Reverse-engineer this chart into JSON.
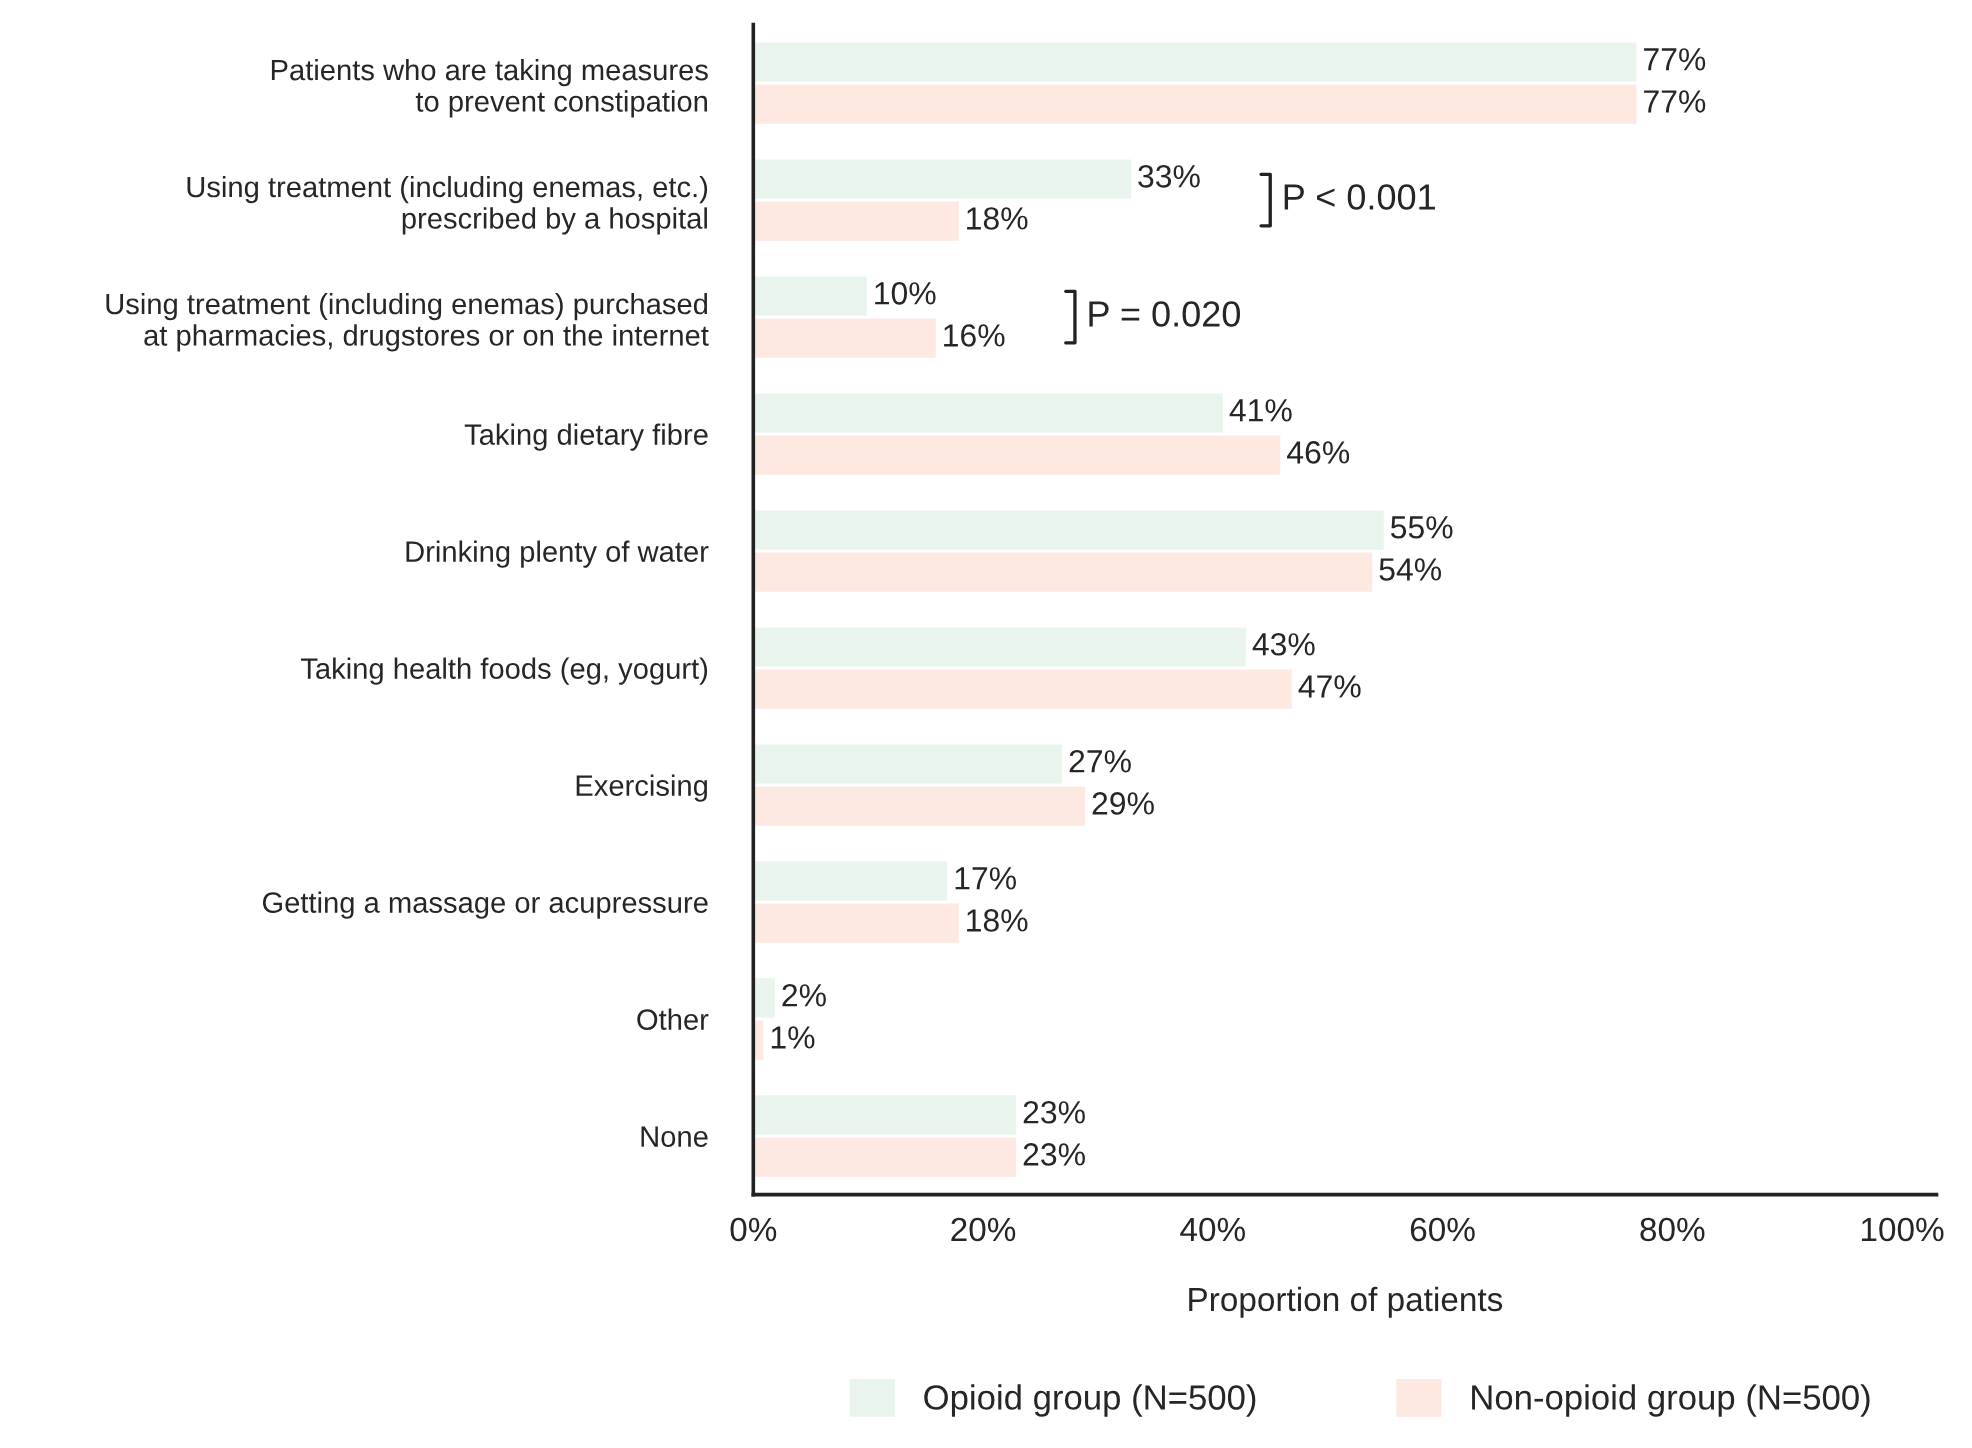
{
  "chart_data": {
    "type": "bar",
    "orientation": "horizontal",
    "xlabel": "Proportion of patients",
    "categories": [
      "Patients who are taking measures\nto prevent constipation",
      "Using treatment (including enemas, etc.)\nprescribed by a hospital",
      "Using treatment (including enemas) purchased\nat pharmacies, drugstores or on the internet",
      "Taking dietary fibre",
      "Drinking plenty of water",
      "Taking health foods (eg, yogurt)",
      "Exercising",
      "Getting a massage or acupressure",
      "Other",
      "None"
    ],
    "series": [
      {
        "name": "Opioid group (N=500)",
        "color": "#e8f4ec",
        "values": [
          77,
          33,
          10,
          41,
          55,
          43,
          27,
          17,
          2,
          23
        ],
        "value_labels": [
          "77%",
          "33%",
          "10%",
          "41%",
          "55%",
          "43%",
          "27%",
          "17%",
          "2%",
          "23%"
        ]
      },
      {
        "name": "Non-opioid group (N=500)",
        "color": "#fde8e2",
        "values": [
          77,
          18,
          16,
          46,
          54,
          47,
          29,
          18,
          1,
          23
        ],
        "value_labels": [
          "77%",
          "18%",
          "16%",
          "46%",
          "54%",
          "47%",
          "29%",
          "18%",
          "1%",
          "23%"
        ]
      }
    ],
    "xlim": [
      0,
      103
    ],
    "xticks": [
      {
        "value": 0,
        "label": "0%"
      },
      {
        "value": 20,
        "label": "20%"
      },
      {
        "value": 40,
        "label": "40%"
      },
      {
        "value": 60,
        "label": "60%"
      },
      {
        "value": 80,
        "label": "80%"
      },
      {
        "value": 100,
        "label": "100%"
      }
    ],
    "annotations": [
      "P < 0.001",
      "P = 0.020"
    ],
    "legend": "bottom",
    "grid": false
  }
}
